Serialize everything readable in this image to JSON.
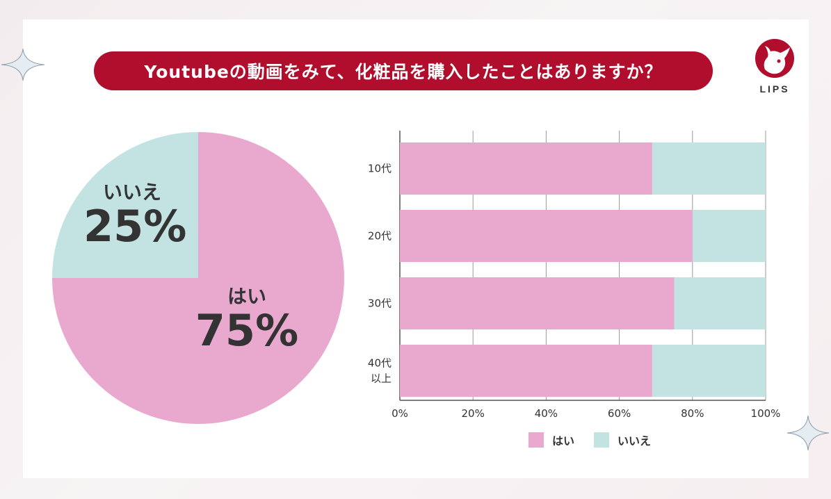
{
  "title": "Youtubeの動画をみて、化粧品を購入したことはありますか？",
  "logo": {
    "text": "LIPS"
  },
  "colors": {
    "yes": "#e9a9cf",
    "no": "#c3e3e3",
    "accent": "#b10d2c",
    "text": "#333333"
  },
  "chart_data": [
    {
      "type": "pie",
      "slices": [
        {
          "label": "はい",
          "value": 75,
          "display": "75%"
        },
        {
          "label": "いいえ",
          "value": 25,
          "display": "25%"
        }
      ]
    },
    {
      "type": "bar",
      "orientation": "horizontal",
      "stacked": true,
      "categories": [
        "10代",
        "20代",
        "30代",
        "40代\n以上"
      ],
      "series": [
        {
          "name": "はい",
          "values": [
            69,
            80,
            75,
            69
          ]
        },
        {
          "name": "いいえ",
          "values": [
            31,
            20,
            25,
            31
          ]
        }
      ],
      "xlim": [
        0,
        100
      ],
      "xticks": [
        "0%",
        "20%",
        "40%",
        "60%",
        "80%",
        "100%"
      ],
      "grid": true,
      "legend": "bottom"
    }
  ]
}
